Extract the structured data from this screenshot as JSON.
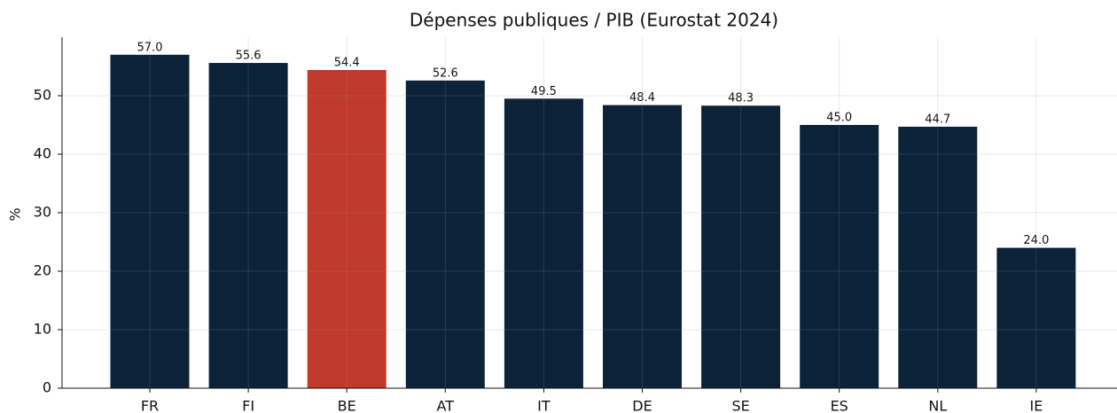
{
  "chart_data": {
    "type": "bar",
    "title": "Dépenses publiques / PIB (Eurostat 2024)",
    "ylabel": "%",
    "categories": [
      "FR",
      "FI",
      "BE",
      "AT",
      "IT",
      "DE",
      "SE",
      "ES",
      "NL",
      "IE"
    ],
    "values": [
      57.0,
      55.6,
      54.4,
      52.6,
      49.5,
      48.4,
      48.3,
      45.0,
      44.7,
      24.0
    ],
    "value_labels": [
      "57.0",
      "55.6",
      "54.4",
      "52.6",
      "49.5",
      "48.4",
      "48.3",
      "45.0",
      "44.7",
      "24.0"
    ],
    "colors": [
      "#0b2239",
      "#0b2239",
      "#c0392b",
      "#0b2239",
      "#0b2239",
      "#0b2239",
      "#0b2239",
      "#0b2239",
      "#0b2239",
      "#0b2239"
    ],
    "ylim": [
      0,
      60
    ],
    "yticks": [
      0,
      10,
      20,
      30,
      40,
      50
    ],
    "grid": true
  }
}
